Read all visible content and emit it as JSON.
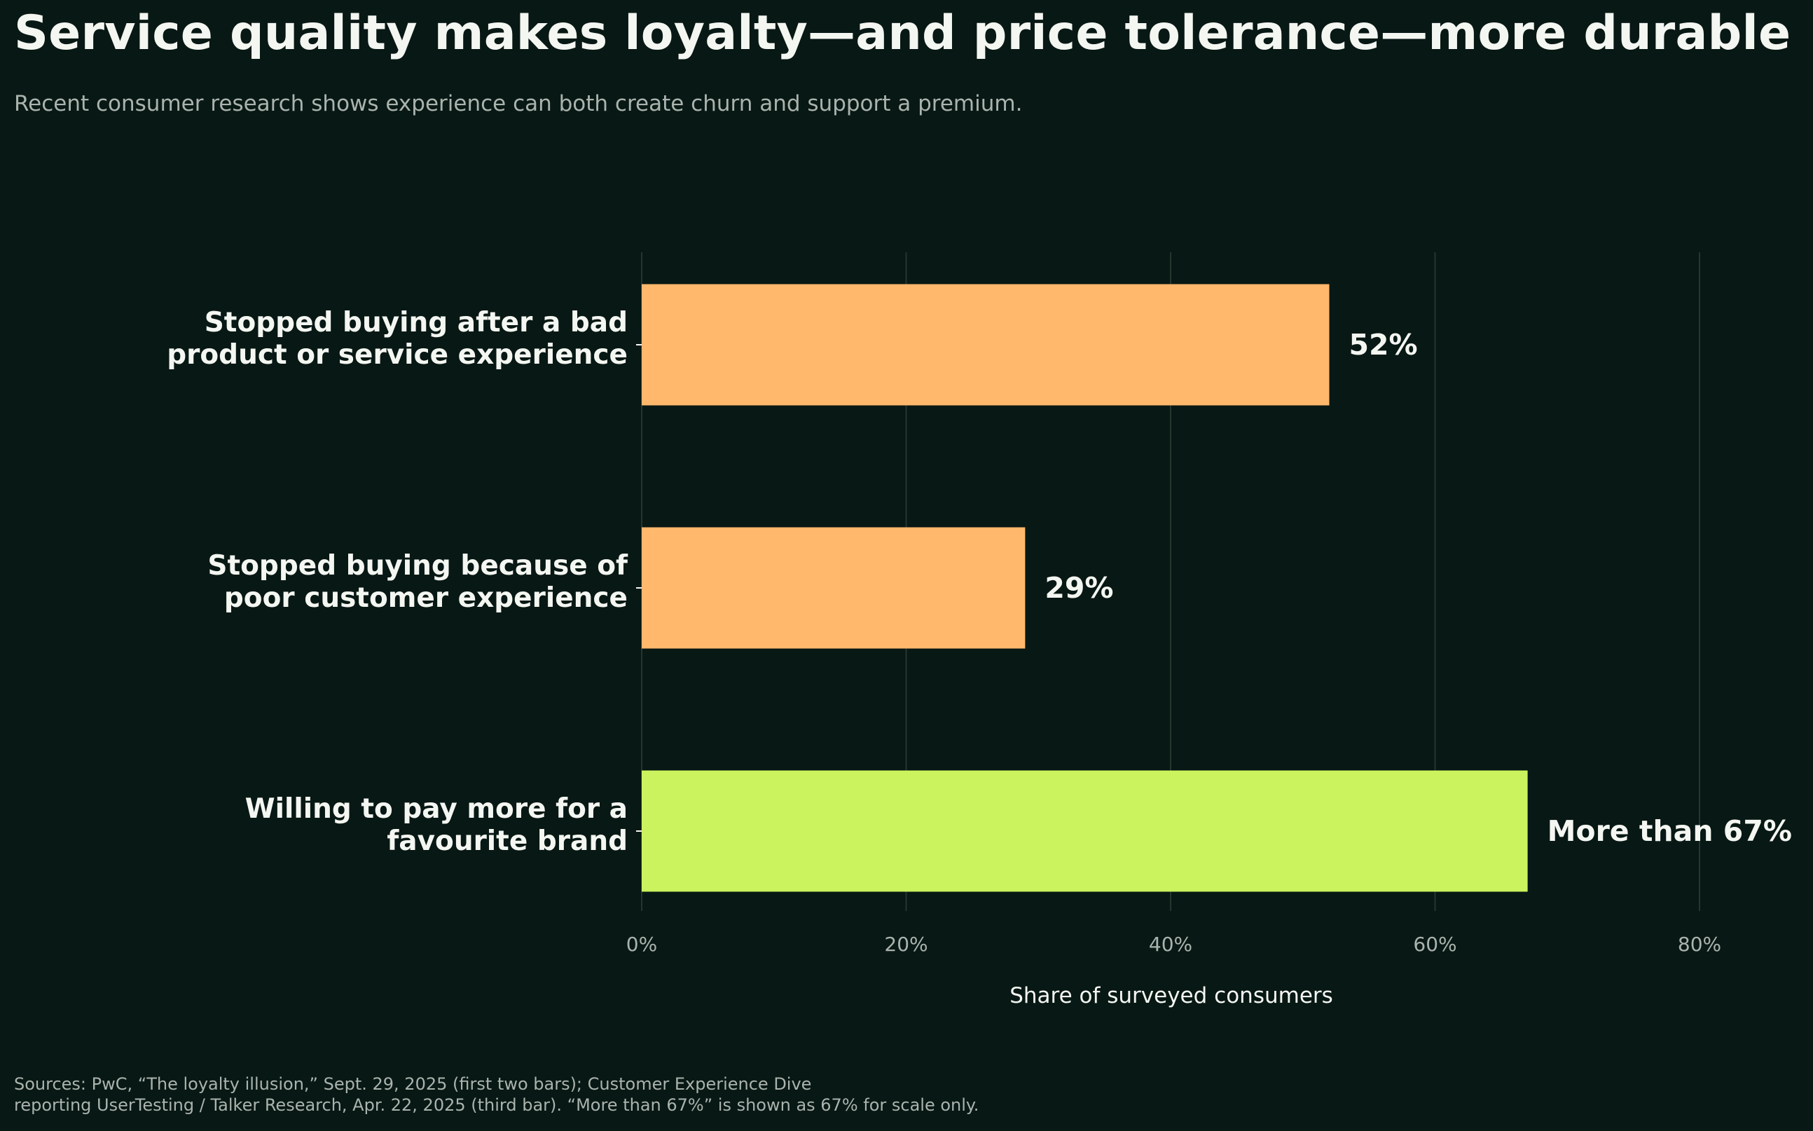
{
  "title": "Service quality makes loyalty—and price tolerance—more durable",
  "subtitle": "Recent consumer research shows experience can both create churn and support a premium.",
  "chart_data": {
    "type": "bar",
    "orientation": "horizontal",
    "categories": [
      [
        "Stopped buying after a bad",
        "product or service experience"
      ],
      [
        "Stopped buying because of",
        "poor customer experience"
      ],
      [
        "Willing to pay more for a",
        "favourite brand"
      ]
    ],
    "values": [
      52,
      29,
      67
    ],
    "value_labels": [
      "52%",
      "29%",
      "More than 67%"
    ],
    "bar_colors": [
      "#ffb86c",
      "#ffb86c",
      "#cbf35d"
    ],
    "xlabel": "Share of surveyed consumers",
    "xlim": [
      0,
      80
    ],
    "xticks": [
      0,
      20,
      40,
      60,
      80
    ],
    "xtick_labels": [
      "0%",
      "20%",
      "40%",
      "60%",
      "80%"
    ],
    "grid": "vertical",
    "legend": "none"
  },
  "source": {
    "line1": "Sources: PwC, “The loyalty illusion,” Sept. 29, 2025 (first two bars); Customer Experience Dive",
    "line2": "reporting UserTesting / Talker Research, Apr. 22, 2025 (third bar). “More than 67%” is shown as 67% for scale only."
  },
  "colors": {
    "background": "#081814",
    "text": "#f4f6f2",
    "muted_text": "#aab3ad",
    "grid": "#26352f"
  }
}
